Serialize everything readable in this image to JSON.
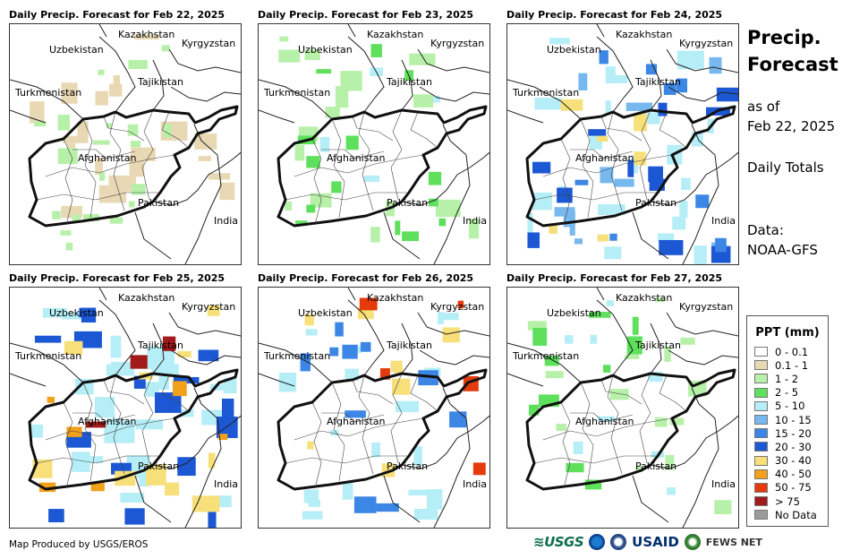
{
  "panels": [
    {
      "title": "Daily Precip. Forecast for Feb 22, 2025"
    },
    {
      "title": "Daily Precip. Forecast for Feb 23, 2025"
    },
    {
      "title": "Daily Precip. Forecast for Feb 24, 2025"
    },
    {
      "title": "Daily Precip. Forecast for Feb 25, 2025"
    },
    {
      "title": "Daily Precip. Forecast for Feb 26, 2025"
    },
    {
      "title": "Daily Precip. Forecast for Feb 27, 2025"
    }
  ],
  "map_labels": {
    "uzbekistan": "Uzbekistan",
    "kazakhstan": "Kazakhstan",
    "kyrgyzstan": "Kyrgyzstan",
    "tajikistan": "Tajikistan",
    "turkmenistan": "Turkmenistan",
    "afghanistan": "Afghanistan",
    "pakistan": "Pakistan",
    "india": "India"
  },
  "side": {
    "title_line1": "Precip.",
    "title_line2": "Forecast",
    "asof_line1": "as of",
    "asof_line2": "Feb 22, 2025",
    "totals": "Daily Totals",
    "data_line1": "Data:",
    "data_line2": "NOAA-GFS"
  },
  "legend": {
    "title": "PPT (mm)",
    "items": [
      {
        "label": "0 - 0.1",
        "color": "#ffffff"
      },
      {
        "label": "0.1 - 1",
        "color": "#e9d8b4"
      },
      {
        "label": "1 - 2",
        "color": "#b7f0a8"
      },
      {
        "label": "2 - 5",
        "color": "#5ee05c"
      },
      {
        "label": "5 - 10",
        "color": "#b5eef6"
      },
      {
        "label": "10 - 15",
        "color": "#77b9ef"
      },
      {
        "label": "15 - 20",
        "color": "#3c86e6"
      },
      {
        "label": "20 - 30",
        "color": "#1c57d4"
      },
      {
        "label": "30 - 40",
        "color": "#f7e07a"
      },
      {
        "label": "40 - 50",
        "color": "#f2a11a"
      },
      {
        "label": "50 - 75",
        "color": "#e43a0c"
      },
      {
        "label": "> 75",
        "color": "#a11b1b"
      },
      {
        "label": "No Data",
        "color": "#9b9b9b"
      }
    ]
  },
  "footer": {
    "credit": "Map Produced by USGS/EROS",
    "usgs": "≋USGS",
    "usaid": "USAID",
    "fews": "FEWS NET"
  },
  "patterns": [
    [
      [
        0,
        20,
        0.9
      ],
      [
        1,
        12,
        0.6
      ],
      [
        1,
        8,
        0.2
      ]
    ],
    [
      [
        1,
        16,
        0.9
      ],
      [
        3,
        4,
        0.7
      ],
      [
        2,
        14,
        0.5
      ]
    ],
    [
      [
        3,
        22,
        0.9
      ],
      [
        4,
        10,
        1.0
      ],
      [
        6,
        12,
        0.8
      ],
      [
        7,
        6,
        0.7
      ],
      [
        5,
        8,
        0.5
      ]
    ],
    [
      [
        3,
        26,
        1.0
      ],
      [
        6,
        16,
        0.9
      ],
      [
        7,
        10,
        0.9
      ],
      [
        8,
        6,
        0.7
      ],
      [
        10,
        3,
        0.6
      ]
    ],
    [
      [
        3,
        18,
        0.8
      ],
      [
        5,
        10,
        0.8
      ],
      [
        7,
        8,
        0.6
      ],
      [
        9,
        5,
        0.6
      ]
    ],
    [
      [
        1,
        14,
        0.6
      ],
      [
        2,
        10,
        0.7
      ],
      [
        3,
        8,
        0.5
      ]
    ]
  ]
}
